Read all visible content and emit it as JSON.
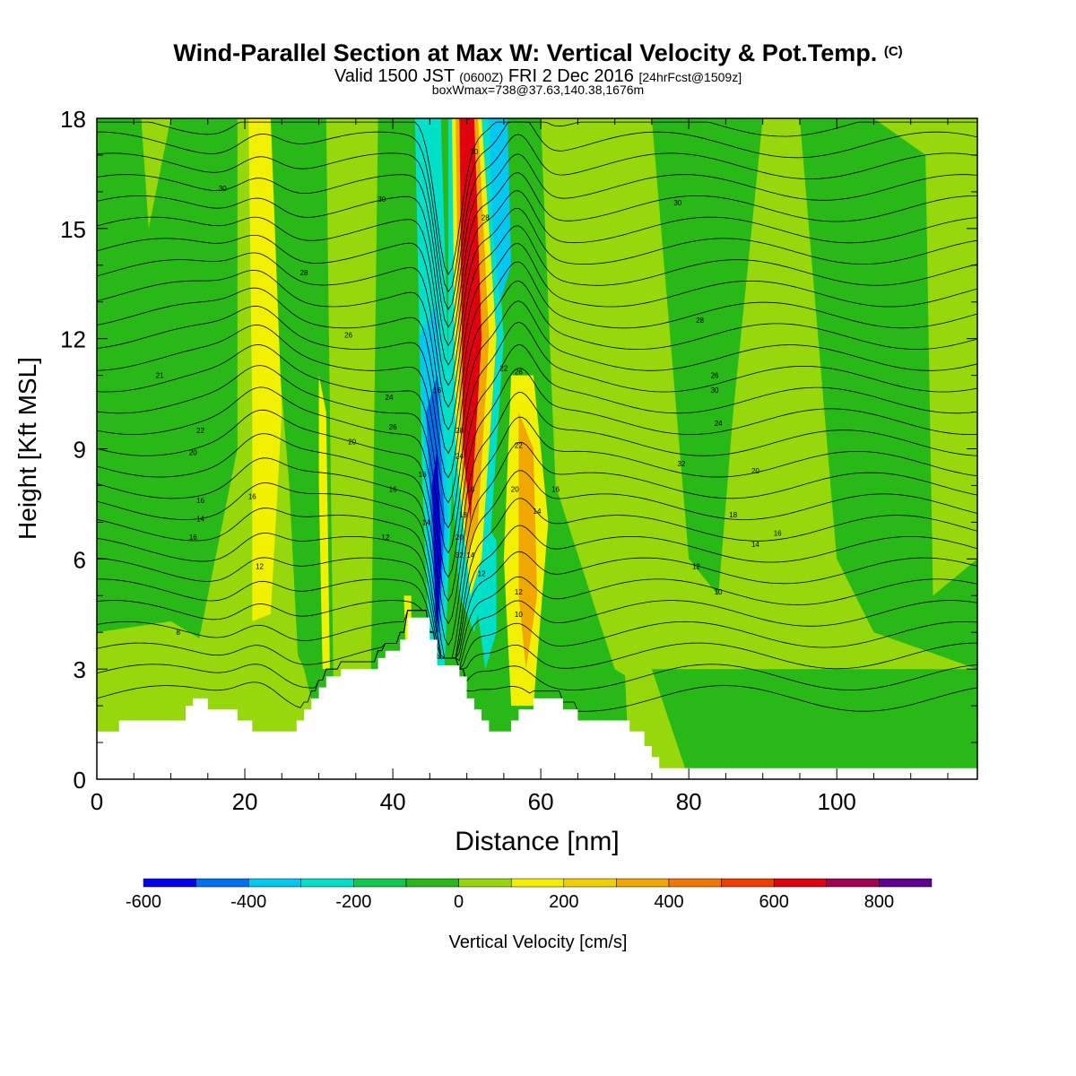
{
  "title": {
    "main": "Wind-Parallel Section at Max W: Vertical Velocity & Pot.Temp.",
    "copyright": "(C)",
    "valid_prefix": "Valid 1500 JST",
    "valid_z": "(0600Z)",
    "valid_date": "FRI 2 Dec 2016",
    "forecast": "[24hrFcst@1509z]",
    "boxmax": "boxWmax=738@37.63,140.38,1676m"
  },
  "chart_data": {
    "type": "heatmap",
    "xlabel": "Distance [nm]",
    "ylabel": "Height [Kft MSL]",
    "xlim": [
      0,
      119
    ],
    "ylim": [
      0,
      18
    ],
    "xticks": [
      0,
      20,
      40,
      60,
      80,
      100
    ],
    "yticks": [
      0,
      3,
      6,
      9,
      12,
      15,
      18
    ],
    "colorbar": {
      "label": "Vertical Velocity [cm/s]",
      "ticks": [
        -600,
        -400,
        -200,
        0,
        200,
        400,
        600,
        800
      ],
      "bounds": [
        -600,
        -500,
        -400,
        -300,
        -200,
        -100,
        0,
        100,
        200,
        300,
        400,
        500,
        600,
        700,
        800,
        900
      ],
      "colors": [
        "#0000f0",
        "#0070f0",
        "#00c8f0",
        "#00e0c8",
        "#10c850",
        "#28b818",
        "#96d80c",
        "#f0f000",
        "#f0d000",
        "#f0a800",
        "#f07800",
        "#f03c00",
        "#e00010",
        "#a00050",
        "#600090"
      ]
    },
    "field_colors": {
      "down_strong": "#0000f0",
      "down": "#0070f0",
      "down_weak": "#00c8f0",
      "down_light": "#00e0c8",
      "neg": "#10c850",
      "near_zero_neg": "#28b818",
      "near_zero_pos": "#96d80c",
      "up": "#f0f000",
      "up_strong": "#f0a800",
      "up_max": "#e00010"
    },
    "terrain": [
      [
        0,
        1.3
      ],
      [
        3,
        1.3
      ],
      [
        3,
        1.6
      ],
      [
        12,
        1.6
      ],
      [
        12,
        2.0
      ],
      [
        13,
        2.0
      ],
      [
        13,
        2.2
      ],
      [
        15,
        2.2
      ],
      [
        15,
        1.9
      ],
      [
        19,
        1.9
      ],
      [
        19,
        1.6
      ],
      [
        21,
        1.6
      ],
      [
        21,
        1.3
      ],
      [
        27,
        1.3
      ],
      [
        27,
        1.6
      ],
      [
        28,
        1.6
      ],
      [
        28,
        1.9
      ],
      [
        29,
        1.9
      ],
      [
        29,
        2.2
      ],
      [
        30,
        2.2
      ],
      [
        30,
        2.5
      ],
      [
        31,
        2.5
      ],
      [
        31,
        2.8
      ],
      [
        33,
        2.8
      ],
      [
        33,
        3.0
      ],
      [
        38,
        3.0
      ],
      [
        38,
        3.3
      ],
      [
        39,
        3.3
      ],
      [
        39,
        3.5
      ],
      [
        41,
        3.5
      ],
      [
        41,
        3.8
      ],
      [
        42,
        3.8
      ],
      [
        42,
        4.4
      ],
      [
        45,
        4.4
      ],
      [
        45,
        3.8
      ],
      [
        46,
        3.8
      ],
      [
        46,
        3.1
      ],
      [
        49,
        3.1
      ],
      [
        49,
        2.8
      ],
      [
        50,
        2.8
      ],
      [
        50,
        2.2
      ],
      [
        51,
        2.2
      ],
      [
        51,
        1.9
      ],
      [
        52,
        1.9
      ],
      [
        52,
        1.6
      ],
      [
        53,
        1.6
      ],
      [
        53,
        1.3
      ],
      [
        56,
        1.3
      ],
      [
        56,
        1.6
      ],
      [
        57,
        1.6
      ],
      [
        57,
        1.9
      ],
      [
        59,
        1.9
      ],
      [
        59,
        2.2
      ],
      [
        63,
        2.2
      ],
      [
        63,
        1.9
      ],
      [
        65,
        1.9
      ],
      [
        65,
        1.6
      ],
      [
        72,
        1.6
      ],
      [
        72,
        1.3
      ],
      [
        74,
        1.3
      ],
      [
        74,
        0.9
      ],
      [
        75,
        0.9
      ],
      [
        75,
        0.6
      ],
      [
        76,
        0.6
      ],
      [
        76,
        0.3
      ],
      [
        119,
        0.3
      ]
    ],
    "contour_labels": [
      {
        "text": "30",
        "x": 17,
        "y": 16.1
      },
      {
        "text": "30",
        "x": 38.5,
        "y": 15.8
      },
      {
        "text": "30",
        "x": 78.5,
        "y": 15.7
      },
      {
        "text": "30",
        "x": 51,
        "y": 17.1
      },
      {
        "text": "28",
        "x": 52.5,
        "y": 15.3
      },
      {
        "text": "28",
        "x": 28,
        "y": 13.8
      },
      {
        "text": "28",
        "x": 81.5,
        "y": 12.5
      },
      {
        "text": "26",
        "x": 34,
        "y": 12.1
      },
      {
        "text": "26",
        "x": 57,
        "y": 11.1
      },
      {
        "text": "26",
        "x": 83.5,
        "y": 11.0
      },
      {
        "text": "24",
        "x": 39.5,
        "y": 10.4
      },
      {
        "text": "24",
        "x": 84,
        "y": 9.7
      },
      {
        "text": "21",
        "x": 8.5,
        "y": 11.0
      },
      {
        "text": "22",
        "x": 14,
        "y": 9.5
      },
      {
        "text": "20",
        "x": 13,
        "y": 8.9
      },
      {
        "text": "20",
        "x": 34.5,
        "y": 9.2
      },
      {
        "text": "20",
        "x": 89,
        "y": 8.4
      },
      {
        "text": "20",
        "x": 56.5,
        "y": 7.9
      },
      {
        "text": "22",
        "x": 55,
        "y": 11.2
      },
      {
        "text": "26",
        "x": 40,
        "y": 9.6
      },
      {
        "text": "16",
        "x": 14,
        "y": 7.6
      },
      {
        "text": "16",
        "x": 21,
        "y": 7.7
      },
      {
        "text": "16",
        "x": 40,
        "y": 7.9
      },
      {
        "text": "16",
        "x": 44,
        "y": 8.3
      },
      {
        "text": "16",
        "x": 46,
        "y": 10.6
      },
      {
        "text": "16",
        "x": 50.5,
        "y": 7.9
      },
      {
        "text": "16",
        "x": 62,
        "y": 7.9
      },
      {
        "text": "16",
        "x": 92,
        "y": 6.7
      },
      {
        "text": "18",
        "x": 86,
        "y": 7.2
      },
      {
        "text": "14",
        "x": 14,
        "y": 7.1
      },
      {
        "text": "14",
        "x": 44.5,
        "y": 7.0
      },
      {
        "text": "14",
        "x": 59.5,
        "y": 7.3
      },
      {
        "text": "14",
        "x": 89,
        "y": 6.4
      },
      {
        "text": "14",
        "x": 50.5,
        "y": 6.1
      },
      {
        "text": "16",
        "x": 13,
        "y": 6.6
      },
      {
        "text": "12",
        "x": 39,
        "y": 6.6
      },
      {
        "text": "12",
        "x": 22,
        "y": 5.8
      },
      {
        "text": "12",
        "x": 81,
        "y": 5.8
      },
      {
        "text": "12",
        "x": 57,
        "y": 5.1
      },
      {
        "text": "10",
        "x": 84,
        "y": 5.1
      },
      {
        "text": "10",
        "x": 57,
        "y": 4.5
      },
      {
        "text": "8",
        "x": 11,
        "y": 4.0
      },
      {
        "text": "28",
        "x": 49,
        "y": 9.5
      },
      {
        "text": "24",
        "x": 49,
        "y": 8.8
      },
      {
        "text": "20",
        "x": 49,
        "y": 6.6
      },
      {
        "text": "18",
        "x": 49.5,
        "y": 7.2
      },
      {
        "text": "32",
        "x": 49,
        "y": 6.1
      },
      {
        "text": "12",
        "x": 52,
        "y": 5.6
      },
      {
        "text": "22",
        "x": 57,
        "y": 9.1
      },
      {
        "text": "32",
        "x": 79,
        "y": 8.6
      },
      {
        "text": "30",
        "x": 83.5,
        "y": 10.6
      }
    ]
  }
}
